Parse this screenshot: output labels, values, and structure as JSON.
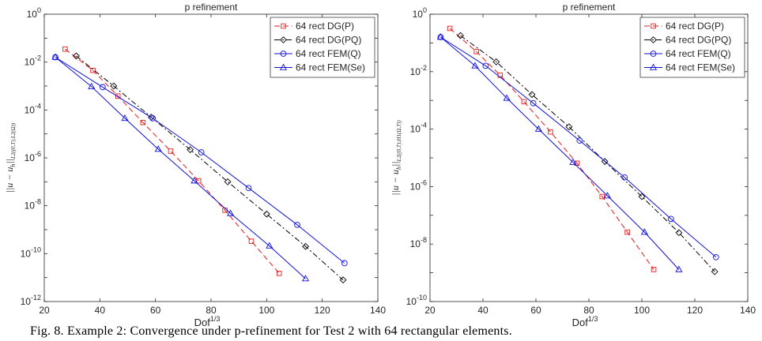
{
  "caption": "Fig. 8.  Example 2: Convergence under p-refinement for Test 2 with 64 rectangular elements.",
  "chart_data": [
    {
      "type": "line",
      "title": "p refinement",
      "xlabel": "Dof",
      "xlabel_sup": "1/3",
      "ylabel": "||u − u_h||_{L2((0,T);L2(Ω))}",
      "ylabel_main": "||u − u",
      "ylabel_h": "h",
      "ylabel_tail": "||",
      "ylabel_sub": "L2((0,T);L2(Ω))",
      "log_y": true,
      "xlim": [
        20,
        140
      ],
      "ylim_exp": [
        -12,
        0
      ],
      "xticks": [
        "20",
        "40",
        "60",
        "80",
        "100",
        "120",
        "140"
      ],
      "yticks": [
        "10^-12",
        "10^-10",
        "10^-8",
        "10^-6",
        "10^-4",
        "10^-2",
        "10^0"
      ],
      "legend_position": "top-right",
      "series": [
        {
          "name": "64 rect DG(P)",
          "color": "#e8191b",
          "marker": "square",
          "style": "dashed",
          "x": [
            27.5,
            37.5,
            46.5,
            55.5,
            65.5,
            75.5,
            85.0,
            94.5,
            104.5
          ],
          "y": [
            0.035,
            0.0045,
            0.00038,
            3e-05,
            1.9e-06,
            1.1e-07,
            6.5e-09,
            3.3e-10,
            1.5e-11
          ]
        },
        {
          "name": "64 rect DG(PQ)",
          "color": "#000000",
          "marker": "diamond",
          "style": "dashdot",
          "x": [
            31.5,
            45.0,
            58.5,
            72.5,
            86.0,
            100.0,
            114.0,
            127.5
          ],
          "y": [
            0.018,
            0.001,
            5e-05,
            2.2e-06,
            1e-07,
            4.5e-09,
            2e-10,
            8e-12
          ]
        },
        {
          "name": "64 rect FEM(Q)",
          "color": "#1010e0",
          "marker": "circle",
          "style": "solid",
          "x": [
            24.0,
            41.0,
            59.0,
            76.5,
            93.5,
            111.0,
            128.0
          ],
          "y": [
            0.016,
            0.0009,
            4.5e-05,
            1.7e-06,
            5.5e-08,
            1.6e-09,
            4e-11
          ]
        },
        {
          "name": "64 rect FEM(Se)",
          "color": "#1010e0",
          "marker": "triangle",
          "style": "solid",
          "x": [
            24.0,
            37.0,
            49.0,
            61.0,
            74.0,
            87.0,
            101.0,
            114.0
          ],
          "y": [
            0.016,
            0.00095,
            4.5e-05,
            2.3e-06,
            1.1e-07,
            4.8e-09,
            2.1e-10,
            9e-12
          ]
        }
      ]
    },
    {
      "type": "line",
      "title": "p refinement",
      "xlabel": "Dof",
      "xlabel_sup": "1/3",
      "ylabel": "||u − u_h||_{L2((0,T);H1(Ω,T))}",
      "ylabel_main": "||u − u",
      "ylabel_h": "h",
      "ylabel_tail": "||",
      "ylabel_sub": "L2((0,T);H1(Ω,T))",
      "log_y": true,
      "xlim": [
        20,
        140
      ],
      "ylim_exp": [
        -10,
        0
      ],
      "xticks": [
        "20",
        "40",
        "60",
        "80",
        "100",
        "120",
        "140"
      ],
      "yticks": [
        "10^-10",
        "10^-8",
        "10^-6",
        "10^-4",
        "10^-2",
        "10^0"
      ],
      "legend_position": "top-right",
      "series": [
        {
          "name": "64 rect DG(P)",
          "color": "#e8191b",
          "marker": "square",
          "style": "dashed",
          "x": [
            27.5,
            37.5,
            46.5,
            55.5,
            65.5,
            75.5,
            85.0,
            94.5,
            104.5
          ],
          "y": [
            0.32,
            0.05,
            0.0075,
            0.0009,
            8e-05,
            6.5e-06,
            4.5e-07,
            2.6e-08,
            1.3e-09
          ]
        },
        {
          "name": "64 rect DG(PQ)",
          "color": "#000000",
          "marker": "diamond",
          "style": "dashdot",
          "x": [
            31.5,
            45.0,
            58.5,
            72.5,
            86.0,
            100.0,
            114.0,
            127.5
          ],
          "y": [
            0.18,
            0.022,
            0.0016,
            0.00012,
            7.5e-06,
            4.5e-07,
            2.5e-08,
            1.1e-09
          ]
        },
        {
          "name": "64 rect FEM(Q)",
          "color": "#1010e0",
          "marker": "circle",
          "style": "solid",
          "x": [
            24.0,
            41.0,
            59.0,
            76.5,
            93.5,
            111.0,
            128.0
          ],
          "y": [
            0.16,
            0.016,
            0.0008,
            4e-05,
            2.1e-06,
            7.5e-08,
            3.5e-09
          ]
        },
        {
          "name": "64 rect FEM(Se)",
          "color": "#1010e0",
          "marker": "triangle",
          "style": "solid",
          "x": [
            24.0,
            37.0,
            49.0,
            61.0,
            74.0,
            87.0,
            101.0,
            114.0
          ],
          "y": [
            0.16,
            0.016,
            0.0012,
            0.0001,
            7e-06,
            4.8e-07,
            2.6e-08,
            1.3e-09
          ]
        }
      ]
    }
  ]
}
